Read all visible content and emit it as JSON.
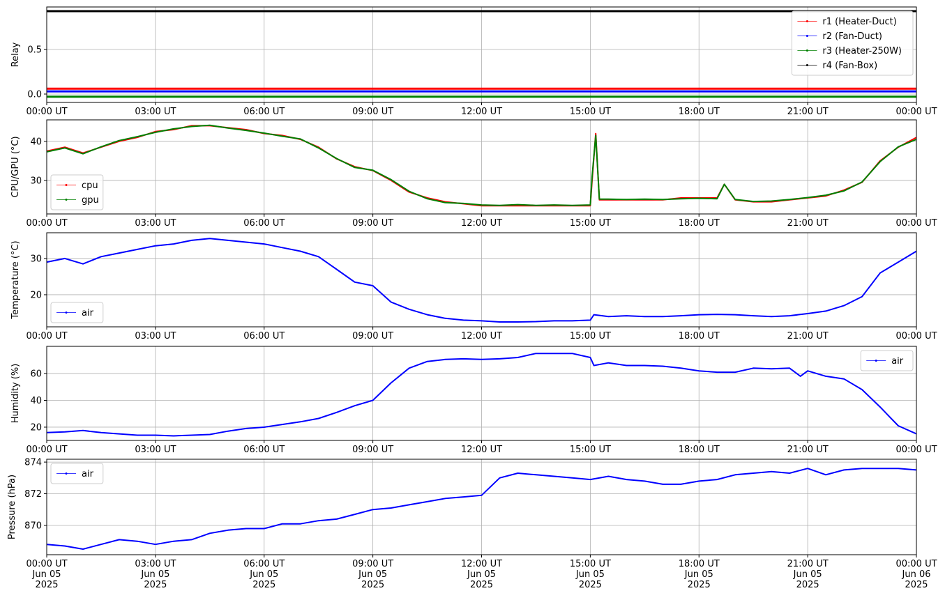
{
  "chart_data": [
    {
      "type": "line",
      "y_label": "Relay",
      "legend": "upper right",
      "grid": true,
      "x": [
        0,
        24
      ],
      "xlim": [
        0,
        24
      ],
      "xticks": [
        {
          "value": 0,
          "label": "00:00 UT"
        },
        {
          "value": 3,
          "label": "03:00 UT"
        },
        {
          "value": 6,
          "label": "06:00 UT"
        },
        {
          "value": 9,
          "label": "09:00 UT"
        },
        {
          "value": 12,
          "label": "12:00 UT"
        },
        {
          "value": 15,
          "label": "15:00 UT"
        },
        {
          "value": 18,
          "label": "18:00 UT"
        },
        {
          "value": 21,
          "label": "21:00 UT"
        },
        {
          "value": 24,
          "label": "00:00 UT"
        }
      ],
      "ylim": [
        -0.094,
        0.977
      ],
      "yticks": [
        {
          "value": 0,
          "label": "0.0"
        },
        0.5
      ],
      "series": [
        {
          "name": "r1 (Heater-Duct)",
          "color": "#ff0000",
          "values": [
            0.06,
            0.06
          ]
        },
        {
          "name": "r2 (Fan-Duct)",
          "color": "#0000ff",
          "values": [
            0.03,
            0.03
          ]
        },
        {
          "name": "r3 (Heater-250W)",
          "color": "#008000",
          "values": [
            -0.03,
            -0.03
          ]
        },
        {
          "name": "r4 (Fan-Box)",
          "color": "#000000",
          "values": [
            0.93,
            0.93
          ]
        }
      ]
    },
    {
      "type": "line",
      "y_label": "CPU/GPU (°C)",
      "legend": "lower left",
      "grid": true,
      "x": [
        0,
        0.5,
        1,
        1.5,
        2,
        2.5,
        3,
        3.5,
        4,
        4.5,
        5,
        5.5,
        6,
        6.5,
        7,
        7.5,
        8,
        8.5,
        9,
        9.5,
        10,
        10.5,
        11,
        11.5,
        12,
        12.5,
        13,
        13.5,
        14,
        14.5,
        15,
        15.05,
        15.15,
        15.25,
        15.5,
        16,
        16.5,
        17,
        17.5,
        18,
        18.5,
        18.7,
        19,
        19.5,
        20,
        20.5,
        21,
        21.5,
        22,
        22.5,
        23,
        23.5,
        24
      ],
      "xlim": [
        0,
        24
      ],
      "xticks": [
        {
          "value": 0,
          "label": "00:00 UT"
        },
        {
          "value": 3,
          "label": "03:00 UT"
        },
        {
          "value": 6,
          "label": "06:00 UT"
        },
        {
          "value": 9,
          "label": "09:00 UT"
        },
        {
          "value": 12,
          "label": "12:00 UT"
        },
        {
          "value": 15,
          "label": "15:00 UT"
        },
        {
          "value": 18,
          "label": "18:00 UT"
        },
        {
          "value": 21,
          "label": "21:00 UT"
        },
        {
          "value": 24,
          "label": "00:00 UT"
        }
      ],
      "ylim": [
        21.4,
        45.5
      ],
      "yticks": [
        30,
        40
      ],
      "series": [
        {
          "name": "cpu",
          "color": "#ff0000",
          "values": [
            37.5,
            38.5,
            37,
            38.5,
            40,
            41,
            42.5,
            43,
            44,
            44,
            43.5,
            43,
            42,
            41.5,
            40.5,
            38.5,
            35.5,
            33.5,
            32.5,
            30,
            27,
            25.5,
            24.5,
            24,
            23.5,
            23.5,
            23.5,
            23.5,
            23.5,
            23.5,
            23.5,
            30,
            42,
            25,
            25,
            25,
            25,
            25,
            25.5,
            25.5,
            25.5,
            29,
            25,
            24.5,
            24.5,
            25,
            25.5,
            26,
            27.5,
            29.5,
            35,
            38.5,
            41
          ]
        },
        {
          "name": "gpu",
          "color": "#008000",
          "values": [
            37.3,
            38.3,
            36.8,
            38.6,
            40.2,
            41.2,
            42.3,
            43.2,
            43.8,
            44.1,
            43.4,
            42.8,
            42.1,
            41.3,
            40.6,
            38.3,
            35.6,
            33.3,
            32.6,
            30.2,
            27.2,
            25.3,
            24.3,
            24.1,
            23.7,
            23.6,
            23.8,
            23.6,
            23.7,
            23.6,
            23.7,
            31,
            41.5,
            25.2,
            25.2,
            25.1,
            25.2,
            25.1,
            25.3,
            25.4,
            25.3,
            29,
            25.1,
            24.6,
            24.7,
            25.1,
            25.6,
            26.2,
            27.3,
            29.6,
            34.8,
            38.6,
            40.5
          ]
        }
      ]
    },
    {
      "type": "line",
      "y_label": "Temperature (°C)",
      "legend": "lower left",
      "grid": true,
      "x": [
        0,
        0.5,
        1,
        1.5,
        2,
        2.5,
        3,
        3.5,
        4,
        4.5,
        5,
        5.5,
        6,
        6.5,
        7,
        7.5,
        8,
        8.5,
        9,
        9.5,
        10,
        10.5,
        11,
        11.5,
        12,
        12.5,
        13,
        13.5,
        14,
        14.5,
        15,
        15.1,
        15.5,
        16,
        16.5,
        17,
        17.5,
        18,
        18.5,
        19,
        19.5,
        20,
        20.5,
        21,
        21.5,
        22,
        22.5,
        23,
        23.5,
        24
      ],
      "xlim": [
        0,
        24
      ],
      "xticks": [
        {
          "value": 0,
          "label": "00:00 UT"
        },
        {
          "value": 3,
          "label": "03:00 UT"
        },
        {
          "value": 6,
          "label": "06:00 UT"
        },
        {
          "value": 9,
          "label": "09:00 UT"
        },
        {
          "value": 12,
          "label": "12:00 UT"
        },
        {
          "value": 15,
          "label": "15:00 UT"
        },
        {
          "value": 18,
          "label": "18:00 UT"
        },
        {
          "value": 21,
          "label": "21:00 UT"
        },
        {
          "value": 24,
          "label": "00:00 UT"
        }
      ],
      "ylim": [
        11.15,
        37.1
      ],
      "yticks": [
        20,
        30
      ],
      "series": [
        {
          "name": "air",
          "color": "#0000ff",
          "values": [
            29,
            30,
            28.5,
            30.5,
            31.5,
            32.5,
            33.5,
            34,
            35,
            35.5,
            35,
            34.5,
            34,
            33,
            32,
            30.5,
            27,
            23.5,
            22.5,
            18,
            16,
            14.5,
            13.5,
            13,
            12.8,
            12.5,
            12.5,
            12.6,
            12.8,
            12.8,
            13,
            14.5,
            14,
            14.2,
            14,
            14,
            14.2,
            14.5,
            14.6,
            14.5,
            14.2,
            14,
            14.2,
            14.8,
            15.5,
            17,
            19.5,
            26,
            29,
            32
          ]
        }
      ]
    },
    {
      "type": "line",
      "y_label": "Humidity (%)",
      "legend": "upper right",
      "grid": true,
      "x": [
        0,
        0.5,
        1,
        1.5,
        2,
        2.5,
        3,
        3.5,
        4,
        4.5,
        5,
        5.5,
        6,
        6.5,
        7,
        7.5,
        8,
        8.5,
        9,
        9.5,
        10,
        10.5,
        11,
        11.5,
        12,
        12.5,
        13,
        13.5,
        14,
        14.5,
        15,
        15.1,
        15.5,
        16,
        16.5,
        17,
        17.5,
        18,
        18.5,
        19,
        19.5,
        20,
        20.5,
        20.8,
        21,
        21.5,
        22,
        22.5,
        23,
        23.5,
        24
      ],
      "xlim": [
        0,
        24
      ],
      "xticks": [
        {
          "value": 0,
          "label": "00:00 UT"
        },
        {
          "value": 3,
          "label": "03:00 UT"
        },
        {
          "value": 6,
          "label": "06:00 UT"
        },
        {
          "value": 9,
          "label": "09:00 UT"
        },
        {
          "value": 12,
          "label": "12:00 UT"
        },
        {
          "value": 15,
          "label": "15:00 UT"
        },
        {
          "value": 18,
          "label": "18:00 UT"
        },
        {
          "value": 21,
          "label": "21:00 UT"
        },
        {
          "value": 24,
          "label": "00:00 UT"
        }
      ],
      "ylim": [
        10.1,
        80.3
      ],
      "yticks": [
        20,
        40,
        60
      ],
      "series": [
        {
          "name": "air",
          "color": "#0000ff",
          "values": [
            16,
            16.5,
            17.5,
            16,
            15,
            14,
            14,
            13.5,
            14,
            14.5,
            17,
            19,
            20,
            22,
            24,
            26.5,
            31,
            36,
            40,
            53,
            64,
            69,
            70.5,
            71,
            70.5,
            71,
            72,
            75,
            75,
            75,
            72,
            66,
            68,
            66,
            66,
            65.5,
            64,
            62,
            61,
            61,
            64,
            63.5,
            64,
            58,
            62,
            58,
            56,
            48,
            35,
            21,
            15
          ]
        }
      ]
    },
    {
      "type": "line",
      "y_label": "Pressure (hPa)",
      "legend": "upper left",
      "grid": true,
      "x": [
        0,
        0.5,
        1,
        1.5,
        2,
        2.5,
        3,
        3.5,
        4,
        4.5,
        5,
        5.5,
        6,
        6.5,
        7,
        7.5,
        8,
        8.5,
        9,
        9.5,
        10,
        10.5,
        11,
        11.5,
        12,
        12.5,
        13,
        13.5,
        14,
        14.5,
        15,
        15.5,
        16,
        16.5,
        17,
        17.5,
        18,
        18.5,
        19,
        19.5,
        20,
        20.5,
        21,
        21.5,
        22,
        22.5,
        23,
        23.5,
        24
      ],
      "xlim": [
        0,
        24
      ],
      "xticks": [
        {
          "value": 0,
          "label": "00:00 UT\nJun 05\n2025"
        },
        {
          "value": 3,
          "label": "03:00 UT\nJun 05\n2025"
        },
        {
          "value": 6,
          "label": "06:00 UT\nJun 05\n2025"
        },
        {
          "value": 9,
          "label": "09:00 UT\nJun 05\n2025"
        },
        {
          "value": 12,
          "label": "12:00 UT\nJun 05\n2025"
        },
        {
          "value": 15,
          "label": "15:00 UT\nJun 05\n2025"
        },
        {
          "value": 18,
          "label": "18:00 UT\nJun 05\n2025"
        },
        {
          "value": 21,
          "label": "21:00 UT\nJun 05\n2025"
        },
        {
          "value": 24,
          "label": "00:00 UT\nJun 06\n2025"
        }
      ],
      "ylim": [
        868.15,
        874.18
      ],
      "yticks": [
        870,
        872,
        874
      ],
      "series": [
        {
          "name": "air",
          "color": "#0000ff",
          "values": [
            868.8,
            868.7,
            868.5,
            868.8,
            869.1,
            869.0,
            868.8,
            869.0,
            869.1,
            869.5,
            869.7,
            869.8,
            869.8,
            870.1,
            870.1,
            870.3,
            870.4,
            870.7,
            871.0,
            871.1,
            871.3,
            871.5,
            871.7,
            871.8,
            871.9,
            873.0,
            873.3,
            873.2,
            873.1,
            873.0,
            872.9,
            873.1,
            872.9,
            872.8,
            872.6,
            872.6,
            872.8,
            872.9,
            873.2,
            873.3,
            873.4,
            873.3,
            873.6,
            873.2,
            873.5,
            873.6,
            873.6,
            873.6,
            873.5
          ]
        }
      ]
    }
  ]
}
